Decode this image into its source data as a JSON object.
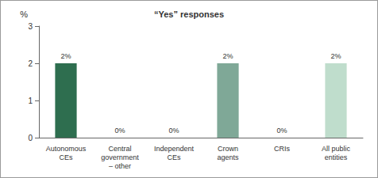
{
  "chart_data": {
    "type": "bar",
    "title": "“Yes” responses",
    "ylabel": "%",
    "categories": [
      "Autonomous CEs",
      "Central government – other",
      "Independent CEs",
      "Crown agents",
      "CRIs",
      "All public entities"
    ],
    "values": [
      2,
      0,
      0,
      2,
      0,
      2
    ],
    "value_labels": [
      "2%",
      "0%",
      "0%",
      "2%",
      "0%",
      "2%"
    ],
    "colors": [
      "#2e6e4f",
      "#4a8466",
      "#64957c",
      "#7fa897",
      "#9fc0b0",
      "#bfddcc"
    ],
    "ylim": [
      0,
      3
    ],
    "yticks": [
      0,
      1,
      2,
      3
    ],
    "grid": false,
    "data_labels": true
  }
}
